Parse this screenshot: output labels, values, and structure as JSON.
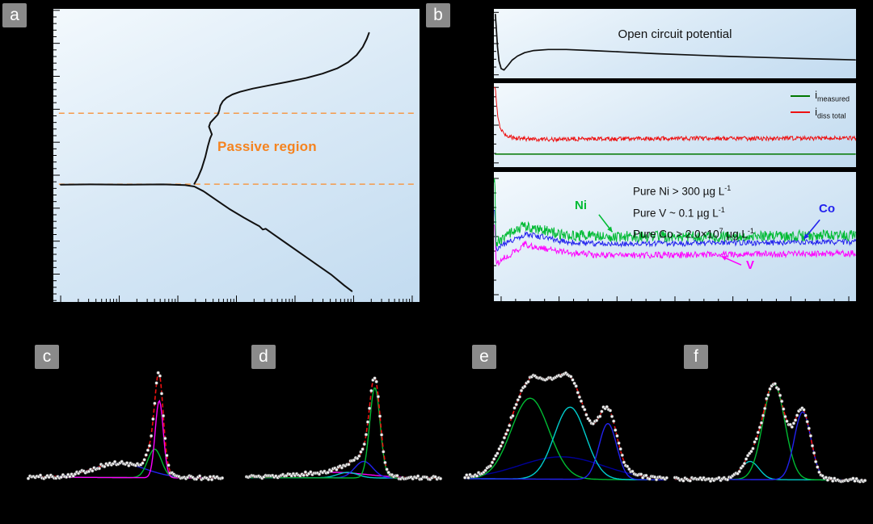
{
  "figure": {
    "background": "#000000",
    "panel_label_bg": "#8a8a8a",
    "panel_label_fg": "#ffffff"
  },
  "panel_labels": {
    "a": "a",
    "b": "b",
    "c": "c",
    "d": "d",
    "e": "e",
    "f": "f"
  },
  "panel_a": {
    "annotation": "Passive region",
    "annotation_color": "#f5831f",
    "dashed_line_color": "#f59a4a"
  },
  "panel_b": {
    "ocp_title": "Open circuit potential",
    "legend": [
      {
        "pre": "i",
        "sub": "measured",
        "color": "#007700"
      },
      {
        "pre": "i",
        "sub": "diss total",
        "color": "#ee1111"
      }
    ],
    "dose_lines": [
      {
        "pre": "Pure Ni > 300 µg L",
        "sup": "-1"
      },
      {
        "pre": "Pure V ~ 0.1 µg L",
        "sup": "-1"
      },
      {
        "pre": "Pure Co > 2.0×10",
        "sup": "7",
        "mid": " µg L",
        "sup2": "-1"
      }
    ],
    "trace_labels": [
      {
        "text": "Ni",
        "color": "#00bb33"
      },
      {
        "text": "Co",
        "color": "#2222ee"
      },
      {
        "text": "V",
        "color": "#ff00ff"
      }
    ]
  },
  "chart_data": [
    {
      "mount": "chart-a-plot",
      "type": "line",
      "note": "Potentiodynamic polarization curve (potential vs log current). Axis tick labels not visible in figure. Coordinates normalized 0-1, y measured downward. Orange dashed lines bound the passive region.",
      "layers": [
        {
          "kind": "ticks",
          "edge": "left",
          "n": 44,
          "major_each": 5,
          "minor_len": 4,
          "major_len": 8,
          "y0": 0.005,
          "y1": 0.995
        },
        {
          "kind": "ticks",
          "edge": "bottom",
          "log_decades": 6,
          "x0": 0.02,
          "x1": 0.98,
          "minor_len": 4,
          "major_len": 8
        },
        {
          "kind": "hline",
          "y": 0.356,
          "x0": 0.015,
          "x1": 0.985,
          "color": "#f59a4a",
          "width": 1.5,
          "dash": "7 5"
        },
        {
          "kind": "hline",
          "y": 0.598,
          "x0": 0.015,
          "x1": 0.985,
          "color": "#f59a4a",
          "width": 1.5,
          "dash": "7 5"
        },
        {
          "kind": "polyline",
          "color": "#111111",
          "width": 2,
          "points": [
            [
              0.02,
              0.6
            ],
            [
              0.1,
              0.599
            ],
            [
              0.2,
              0.6
            ],
            [
              0.3,
              0.599
            ],
            [
              0.36,
              0.601
            ],
            [
              0.385,
              0.606
            ],
            [
              0.41,
              0.622
            ],
            [
              0.44,
              0.648
            ],
            [
              0.48,
              0.682
            ],
            [
              0.52,
              0.712
            ],
            [
              0.55,
              0.733
            ],
            [
              0.563,
              0.742
            ],
            [
              0.572,
              0.753
            ],
            [
              0.58,
              0.75
            ],
            [
              0.6,
              0.768
            ],
            [
              0.64,
              0.803
            ],
            [
              0.68,
              0.838
            ],
            [
              0.72,
              0.873
            ],
            [
              0.76,
              0.908
            ],
            [
              0.795,
              0.944
            ],
            [
              0.815,
              0.963
            ]
          ]
        },
        {
          "kind": "polyline",
          "color": "#111111",
          "width": 2,
          "points": [
            [
              0.385,
              0.597
            ],
            [
              0.395,
              0.575
            ],
            [
              0.405,
              0.545
            ],
            [
              0.415,
              0.505
            ],
            [
              0.422,
              0.468
            ],
            [
              0.428,
              0.442
            ],
            [
              0.433,
              0.428
            ],
            [
              0.429,
              0.415
            ],
            [
              0.425,
              0.402
            ],
            [
              0.429,
              0.388
            ],
            [
              0.439,
              0.374
            ],
            [
              0.449,
              0.361
            ],
            [
              0.453,
              0.347
            ],
            [
              0.456,
              0.33
            ],
            [
              0.463,
              0.315
            ],
            [
              0.473,
              0.303
            ],
            [
              0.489,
              0.292
            ],
            [
              0.51,
              0.283
            ],
            [
              0.545,
              0.272
            ],
            [
              0.59,
              0.261
            ],
            [
              0.64,
              0.249
            ],
            [
              0.69,
              0.236
            ],
            [
              0.735,
              0.221
            ],
            [
              0.775,
              0.203
            ],
            [
              0.805,
              0.182
            ],
            [
              0.828,
              0.158
            ],
            [
              0.845,
              0.13
            ],
            [
              0.856,
              0.102
            ],
            [
              0.862,
              0.082
            ]
          ]
        }
      ]
    },
    {
      "mount": "chart-b-ocp",
      "type": "line",
      "note": "Open circuit potential vs time.",
      "layers": [
        {
          "kind": "ticks",
          "edge": "left",
          "n": 8,
          "major_each": 4,
          "minor_len": 3,
          "major_len": 6,
          "y0": 0.05,
          "y1": 0.95
        },
        {
          "kind": "polyline",
          "color": "#101010",
          "width": 1.7,
          "points": [
            [
              0.004,
              0.08
            ],
            [
              0.007,
              0.3
            ],
            [
              0.01,
              0.55
            ],
            [
              0.014,
              0.75
            ],
            [
              0.02,
              0.86
            ],
            [
              0.028,
              0.88
            ],
            [
              0.038,
              0.82
            ],
            [
              0.05,
              0.74
            ],
            [
              0.065,
              0.68
            ],
            [
              0.085,
              0.63
            ],
            [
              0.11,
              0.6
            ],
            [
              0.15,
              0.585
            ],
            [
              0.2,
              0.585
            ],
            [
              0.27,
              0.6
            ],
            [
              0.35,
              0.62
            ],
            [
              0.45,
              0.645
            ],
            [
              0.55,
              0.665
            ],
            [
              0.65,
              0.685
            ],
            [
              0.75,
              0.7
            ],
            [
              0.85,
              0.715
            ],
            [
              0.93,
              0.725
            ],
            [
              0.998,
              0.735
            ]
          ]
        }
      ]
    },
    {
      "mount": "chart-b-current",
      "type": "line",
      "note": "Currents vs time: i_diss total (red, noisy, initial spike) above i_measured (green, flat).",
      "layers": [
        {
          "kind": "ticks",
          "edge": "left",
          "n": 8,
          "major_each": 4,
          "minor_len": 3,
          "major_len": 6,
          "y0": 0.05,
          "y1": 0.95
        },
        {
          "kind": "noise",
          "color": "#ee1111",
          "width": 1,
          "amp": 0.05,
          "n": 650,
          "seed": 11,
          "base": [
            [
              0.004,
              0.05
            ],
            [
              0.006,
              0.16
            ],
            [
              0.01,
              0.38
            ],
            [
              0.018,
              0.54
            ],
            [
              0.03,
              0.62
            ],
            [
              0.06,
              0.655
            ],
            [
              0.12,
              0.67
            ],
            [
              0.25,
              0.665
            ],
            [
              0.45,
              0.66
            ],
            [
              0.7,
              0.66
            ],
            [
              1.0,
              0.655
            ]
          ]
        },
        {
          "kind": "polyline",
          "color": "#007700",
          "width": 1.5,
          "points": [
            [
              0.004,
              0.845
            ],
            [
              0.998,
              0.845
            ]
          ]
        }
      ]
    },
    {
      "mount": "chart-b-diss",
      "type": "line",
      "note": "Online dissolution traces: Ni (green) > Co (blue) > V (magenta), with initial transient spikes at left edge.",
      "layers": [
        {
          "kind": "ticks",
          "edge": "left",
          "n": 8,
          "major_each": 4,
          "minor_len": 3,
          "major_len": 6,
          "y0": 0.05,
          "y1": 0.95
        },
        {
          "kind": "ticks",
          "edge": "bottom",
          "n": 24,
          "major_each": 4,
          "minor_len": 3,
          "major_len": 6,
          "x0": 0.02,
          "x1": 0.98
        },
        {
          "kind": "noise",
          "color": "#2222ee",
          "width": 1,
          "amp": 0.045,
          "n": 520,
          "seed": 21,
          "base": [
            [
              0.003,
              0.3
            ],
            [
              0.006,
              0.6
            ],
            [
              0.02,
              0.57
            ],
            [
              0.05,
              0.53
            ],
            [
              0.085,
              0.485
            ],
            [
              0.13,
              0.5
            ],
            [
              0.2,
              0.545
            ],
            [
              0.3,
              0.555
            ],
            [
              0.45,
              0.555
            ],
            [
              0.6,
              0.55
            ],
            [
              0.8,
              0.545
            ],
            [
              1.0,
              0.54
            ]
          ]
        },
        {
          "kind": "noise",
          "color": "#ff00ff",
          "width": 1,
          "amp": 0.05,
          "n": 520,
          "seed": 31,
          "base": [
            [
              0.003,
              0.4
            ],
            [
              0.006,
              0.72
            ],
            [
              0.02,
              0.68
            ],
            [
              0.05,
              0.63
            ],
            [
              0.085,
              0.56
            ],
            [
              0.13,
              0.585
            ],
            [
              0.2,
              0.625
            ],
            [
              0.3,
              0.645
            ],
            [
              0.45,
              0.645
            ],
            [
              0.6,
              0.64
            ],
            [
              0.8,
              0.635
            ],
            [
              1.0,
              0.63
            ]
          ]
        },
        {
          "kind": "noise",
          "color": "#00bb33",
          "width": 1,
          "amp": 0.085,
          "n": 620,
          "seed": 41,
          "base": [
            [
              0.003,
              0.05
            ],
            [
              0.005,
              0.55
            ],
            [
              0.02,
              0.52
            ],
            [
              0.05,
              0.47
            ],
            [
              0.085,
              0.42
            ],
            [
              0.13,
              0.445
            ],
            [
              0.2,
              0.49
            ],
            [
              0.3,
              0.5
            ],
            [
              0.45,
              0.5
            ],
            [
              0.6,
              0.5
            ],
            [
              0.8,
              0.495
            ],
            [
              1.0,
              0.49
            ]
          ]
        },
        {
          "kind": "arrow",
          "color": "#00bb33",
          "x1": 0.29,
          "y1": 0.33,
          "x2": 0.327,
          "y2": 0.465
        },
        {
          "kind": "arrow",
          "color": "#2222ee",
          "x1": 0.9,
          "y1": 0.37,
          "x2": 0.856,
          "y2": 0.52
        },
        {
          "kind": "arrow",
          "color": "#ff00ff",
          "x1": 0.683,
          "y1": 0.72,
          "x2": 0.628,
          "y2": 0.652
        }
      ]
    },
    {
      "mount": "chart-c-plot",
      "type": "spectrum",
      "note": "Fitted spectrum: measured data (white dots), total fit (red dashed), components: broad blue, green, tall narrow magenta main peak.",
      "layers": [
        {
          "kind": "spectrum",
          "y_base": 0.84,
          "y_amp": 0.78,
          "base0": 0.045,
          "base1": -0.01,
          "x0": 0.02,
          "x1": 0.98,
          "seed": 101,
          "dots_n": 112,
          "dots_amp": 0.035,
          "dot_r": 1.9,
          "envelope_color": "#ee1111",
          "components": [
            {
              "c": 0.47,
              "s": 0.13,
              "h": 0.13,
              "color": "#2222ee"
            },
            {
              "c": 0.645,
              "s": 0.034,
              "h": 0.26,
              "color": "#00bb33"
            },
            {
              "c": 0.668,
              "s": 0.02,
              "h": 0.7,
              "color": "#ff00ff"
            }
          ]
        }
      ]
    },
    {
      "mount": "chart-d-plot",
      "type": "spectrum",
      "note": "Fitted spectrum: tall narrow green main peak, small blue shoulder, broad low magenta and cyan components, red dashed total fit, white data dots.",
      "layers": [
        {
          "kind": "spectrum",
          "y_base": 0.84,
          "y_amp": 0.78,
          "base0": 0.04,
          "base1": -0.005,
          "x0": 0.02,
          "x1": 0.98,
          "seed": 102,
          "dots_n": 112,
          "dots_amp": 0.032,
          "dot_r": 1.9,
          "envelope_color": "#ee1111",
          "components": [
            {
              "c": 0.45,
              "s": 0.17,
              "h": 0.05,
              "color": "#ff00ff"
            },
            {
              "c": 0.52,
              "s": 0.05,
              "h": 0.05,
              "color": "#00cccc"
            },
            {
              "c": 0.6,
              "s": 0.045,
              "h": 0.15,
              "color": "#2222ee"
            },
            {
              "c": 0.655,
              "s": 0.026,
              "h": 0.82,
              "color": "#00bb33"
            }
          ]
        }
      ]
    },
    {
      "mount": "chart-e-plot",
      "type": "spectrum",
      "note": "Fitted spectrum: broad multi-component envelope; green, cyan and blue peaks over a broad navy background, red dashed total fit, white data dots.",
      "layers": [
        {
          "kind": "spectrum",
          "y_base": 0.86,
          "y_amp": 0.88,
          "base0": 0.05,
          "base1": -0.01,
          "x0": 0.02,
          "x1": 0.98,
          "seed": 103,
          "dots_n": 118,
          "dots_amp": 0.03,
          "dot_r": 1.9,
          "envelope_color": "#ee1111",
          "components": [
            {
              "c": 0.48,
              "s": 0.2,
              "h": 0.18,
              "color": "#000099"
            },
            {
              "c": 0.33,
              "s": 0.09,
              "h": 0.65,
              "color": "#00bb33"
            },
            {
              "c": 0.52,
              "s": 0.075,
              "h": 0.58,
              "color": "#00cccc"
            },
            {
              "c": 0.7,
              "s": 0.042,
              "h": 0.45,
              "color": "#2222ee"
            }
          ]
        }
      ]
    },
    {
      "mount": "chart-f-plot",
      "type": "spectrum",
      "note": "Fitted spectrum: tall green main peak with blue second peak and small cyan component, red dashed total fit, white data dots.",
      "layers": [
        {
          "kind": "spectrum",
          "y_base": 0.86,
          "y_amp": 0.8,
          "base0": 0.05,
          "base1": -0.008,
          "x0": 0.02,
          "x1": 0.98,
          "seed": 104,
          "dots_n": 112,
          "dots_amp": 0.03,
          "dot_r": 1.9,
          "envelope_color": "#ee1111",
          "components": [
            {
              "c": 0.4,
              "s": 0.045,
              "h": 0.16,
              "color": "#00cccc"
            },
            {
              "c": 0.52,
              "s": 0.055,
              "h": 0.85,
              "color": "#00bb33"
            },
            {
              "c": 0.665,
              "s": 0.042,
              "h": 0.6,
              "color": "#2222ee"
            }
          ]
        }
      ]
    }
  ]
}
